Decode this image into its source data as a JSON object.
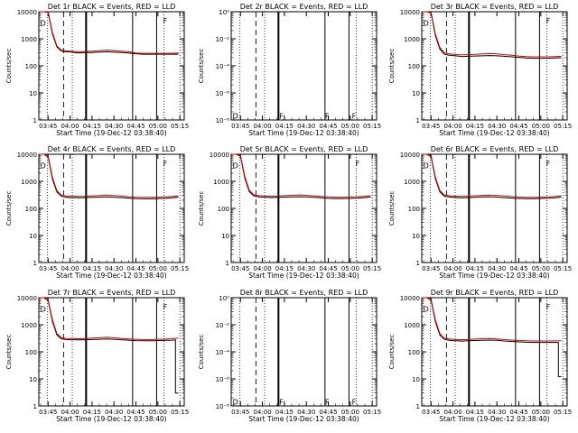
{
  "chart_data": [
    {
      "type": "line",
      "title": "Det 1r BLACK = Events, RED = LLD",
      "xlabel": "Start Time (19-Dec-12 03:38:40)",
      "ylabel": "Counts/sec",
      "x_ticks": [
        "03:45",
        "04:00",
        "04:15",
        "04:30",
        "04:45",
        "05:00",
        "05:15"
      ],
      "y_ticks": [
        "1",
        "10",
        "100",
        "1000",
        "10000"
      ],
      "y_scale": "log",
      "ylim": [
        1,
        10000
      ],
      "markers": [
        "D",
        "F",
        "F",
        "F"
      ],
      "series": [
        {
          "color": "#000000",
          "x": [
            "03:39",
            "03:42",
            "03:45",
            "03:48",
            "03:51",
            "03:54",
            "03:57",
            "04:00",
            "04:03",
            "04:06",
            "04:10",
            "04:15",
            "04:20",
            "04:25",
            "04:30",
            "04:35",
            "04:40",
            "04:45",
            "04:50",
            "04:55",
            "05:00",
            "05:05",
            "05:10",
            "05:14"
          ],
          "values": [
            10000,
            10000,
            9500,
            1500,
            500,
            350,
            330,
            330,
            310,
            300,
            310,
            310,
            320,
            330,
            320,
            310,
            300,
            280,
            270,
            270,
            270,
            270,
            270,
            270
          ]
        },
        {
          "color": "#d40000",
          "x": [
            "03:39",
            "03:42",
            "03:45",
            "03:48",
            "03:51",
            "03:54",
            "03:57",
            "04:00",
            "04:03",
            "04:06",
            "04:10",
            "04:15",
            "04:20",
            "04:25",
            "04:30",
            "04:35",
            "04:40",
            "04:45",
            "04:50",
            "04:55",
            "05:00",
            "05:05",
            "05:10",
            "05:14"
          ],
          "values": [
            10000,
            10000,
            9800,
            1700,
            550,
            380,
            360,
            350,
            340,
            330,
            340,
            350,
            360,
            380,
            370,
            350,
            330,
            300,
            290,
            290,
            290,
            290,
            290,
            300
          ]
        }
      ]
    },
    {
      "type": "line",
      "title": "Det 2r BLACK = Events, RED = LLD",
      "xlabel": "Start Time (19-Dec-12 03:38:40)",
      "ylabel": "Counts/sec",
      "x_ticks": [
        "03:45",
        "04:00",
        "04:15",
        "04:30",
        "04:45",
        "05:00",
        "05:15"
      ],
      "y_ticks": [
        "10⁻⁸",
        "10⁻⁶",
        "10⁻⁴",
        "10⁻²",
        "10⁰"
      ],
      "y_scale": "log",
      "ylim": [
        1e-09,
        1e-08
      ],
      "markers": [
        "D",
        "F",
        "F",
        "F"
      ],
      "series": []
    },
    {
      "type": "line",
      "title": "Det 3r BLACK = Events, RED = LLD",
      "xlabel": "Start Time (19-Dec-12 03:38:40)",
      "ylabel": "Counts/sec",
      "x_ticks": [
        "03:45",
        "04:00",
        "04:15",
        "04:30",
        "04:45",
        "05:00",
        "05:15"
      ],
      "y_ticks": [
        "1",
        "10",
        "100",
        "1000",
        "10000"
      ],
      "y_scale": "log",
      "ylim": [
        1,
        10000
      ],
      "markers": [
        "D",
        "F",
        "F",
        "F"
      ],
      "series": [
        {
          "color": "#000000",
          "x": [
            "03:39",
            "03:42",
            "03:45",
            "03:48",
            "03:51",
            "03:54",
            "03:57",
            "04:00",
            "04:03",
            "04:06",
            "04:10",
            "04:15",
            "04:20",
            "04:25",
            "04:30",
            "04:35",
            "04:40",
            "04:45",
            "04:50",
            "04:55",
            "05:00",
            "05:05",
            "05:10",
            "05:14"
          ],
          "values": [
            10000,
            10000,
            9000,
            1300,
            420,
            270,
            250,
            240,
            230,
            220,
            225,
            230,
            235,
            240,
            235,
            225,
            215,
            205,
            195,
            190,
            190,
            190,
            195,
            200
          ]
        },
        {
          "color": "#d40000",
          "x": [
            "03:39",
            "03:42",
            "03:45",
            "03:48",
            "03:51",
            "03:54",
            "03:57",
            "04:00",
            "04:03",
            "04:06",
            "04:10",
            "04:15",
            "04:20",
            "04:25",
            "04:30",
            "04:35",
            "04:40",
            "04:45",
            "04:50",
            "04:55",
            "05:00",
            "05:05",
            "05:10",
            "05:14"
          ],
          "values": [
            10000,
            10000,
            9500,
            1500,
            480,
            300,
            280,
            270,
            260,
            255,
            260,
            265,
            275,
            285,
            275,
            260,
            245,
            230,
            220,
            215,
            215,
            215,
            220,
            225
          ]
        }
      ]
    },
    {
      "type": "line",
      "title": "Det 4r BLACK = Events, RED = LLD",
      "xlabel": "Start Time (19-Dec-12 03:38:40)",
      "ylabel": "Counts/sec",
      "x_ticks": [
        "03:45",
        "04:00",
        "04:15",
        "04:30",
        "04:45",
        "05:00",
        "05:15"
      ],
      "y_ticks": [
        "1",
        "10",
        "100",
        "1000",
        "10000"
      ],
      "y_scale": "log",
      "ylim": [
        1,
        10000
      ],
      "markers": [
        "D",
        "F",
        "F",
        "F"
      ],
      "series": [
        {
          "color": "#000000",
          "x": [
            "03:39",
            "03:42",
            "03:45",
            "03:48",
            "03:51",
            "03:54",
            "03:57",
            "04:00",
            "04:03",
            "04:06",
            "04:10",
            "04:15",
            "04:20",
            "04:25",
            "04:30",
            "04:35",
            "04:40",
            "04:45",
            "04:50",
            "04:55",
            "05:00",
            "05:05",
            "05:10",
            "05:14"
          ],
          "values": [
            10000,
            10000,
            8000,
            1200,
            400,
            280,
            260,
            250,
            250,
            245,
            250,
            255,
            260,
            265,
            260,
            250,
            240,
            230,
            225,
            225,
            230,
            235,
            245,
            260
          ]
        },
        {
          "color": "#d40000",
          "x": [
            "03:39",
            "03:42",
            "03:45",
            "03:48",
            "03:51",
            "03:54",
            "03:57",
            "04:00",
            "04:03",
            "04:06",
            "04:10",
            "04:15",
            "04:20",
            "04:25",
            "04:30",
            "04:35",
            "04:40",
            "04:45",
            "04:50",
            "04:55",
            "05:00",
            "05:05",
            "05:10",
            "05:14"
          ],
          "values": [
            10000,
            10000,
            8500,
            1400,
            450,
            310,
            290,
            280,
            280,
            275,
            280,
            290,
            300,
            310,
            300,
            285,
            270,
            260,
            255,
            255,
            260,
            265,
            275,
            290
          ]
        }
      ]
    },
    {
      "type": "line",
      "title": "Det 5r BLACK = Events, RED = LLD",
      "xlabel": "Start Time (19-Dec-12 03:38:40)",
      "ylabel": "Counts/sec",
      "x_ticks": [
        "03:45",
        "04:00",
        "04:15",
        "04:30",
        "04:45",
        "05:00",
        "05:15"
      ],
      "y_ticks": [
        "1",
        "10",
        "100",
        "1000",
        "10000"
      ],
      "y_scale": "log",
      "ylim": [
        1,
        10000
      ],
      "markers": [
        "D",
        "F",
        "F",
        "F"
      ],
      "series": [
        {
          "color": "#000000",
          "x": [
            "03:39",
            "03:42",
            "03:45",
            "03:48",
            "03:51",
            "03:54",
            "03:57",
            "04:00",
            "04:03",
            "04:06",
            "04:10",
            "04:15",
            "04:20",
            "04:25",
            "04:30",
            "04:35",
            "04:40",
            "04:45",
            "04:50",
            "04:55",
            "05:00",
            "05:05",
            "05:10",
            "05:14"
          ],
          "values": [
            10000,
            10000,
            8500,
            1300,
            420,
            290,
            270,
            260,
            255,
            250,
            255,
            260,
            265,
            270,
            265,
            255,
            245,
            235,
            230,
            230,
            235,
            240,
            250,
            265
          ]
        },
        {
          "color": "#d40000",
          "x": [
            "03:39",
            "03:42",
            "03:45",
            "03:48",
            "03:51",
            "03:54",
            "03:57",
            "04:00",
            "04:03",
            "04:06",
            "04:10",
            "04:15",
            "04:20",
            "04:25",
            "04:30",
            "04:35",
            "04:40",
            "04:45",
            "04:50",
            "04:55",
            "05:00",
            "05:05",
            "05:10",
            "05:14"
          ],
          "values": [
            10000,
            10000,
            9000,
            1500,
            470,
            320,
            300,
            290,
            285,
            280,
            285,
            295,
            305,
            315,
            305,
            290,
            275,
            265,
            260,
            260,
            265,
            270,
            280,
            295
          ]
        }
      ]
    },
    {
      "type": "line",
      "title": "Det 6r BLACK = Events, RED = LLD",
      "xlabel": "Start Time (19-Dec-12 03:38:40)",
      "ylabel": "Counts/sec",
      "x_ticks": [
        "03:45",
        "04:00",
        "04:15",
        "04:30",
        "04:45",
        "05:00",
        "05:15"
      ],
      "y_ticks": [
        "1",
        "10",
        "100",
        "1000",
        "10000"
      ],
      "y_scale": "log",
      "ylim": [
        1,
        10000
      ],
      "markers": [
        "D",
        "F",
        "F",
        "F"
      ],
      "series": [
        {
          "color": "#000000",
          "x": [
            "03:39",
            "03:42",
            "03:45",
            "03:48",
            "03:51",
            "03:54",
            "03:57",
            "04:00",
            "04:03",
            "04:06",
            "04:10",
            "04:15",
            "04:20",
            "04:25",
            "04:30",
            "04:35",
            "04:40",
            "04:45",
            "04:50",
            "04:55",
            "05:00",
            "05:05",
            "05:10",
            "05:14"
          ],
          "values": [
            10000,
            10000,
            8200,
            1250,
            410,
            285,
            265,
            255,
            250,
            245,
            250,
            258,
            265,
            270,
            262,
            250,
            240,
            232,
            228,
            228,
            232,
            238,
            248,
            262
          ]
        },
        {
          "color": "#d40000",
          "x": [
            "03:39",
            "03:42",
            "03:45",
            "03:48",
            "03:51",
            "03:54",
            "03:57",
            "04:00",
            "04:03",
            "04:06",
            "04:10",
            "04:15",
            "04:20",
            "04:25",
            "04:30",
            "04:35",
            "04:40",
            "04:45",
            "04:50",
            "04:55",
            "05:00",
            "05:05",
            "05:10",
            "05:14"
          ],
          "values": [
            10000,
            10000,
            8700,
            1450,
            460,
            315,
            295,
            285,
            280,
            275,
            282,
            292,
            302,
            312,
            302,
            288,
            272,
            262,
            257,
            257,
            262,
            268,
            278,
            292
          ]
        }
      ]
    },
    {
      "type": "line",
      "title": "Det 7r BLACK = Events, RED = LLD",
      "xlabel": "Start Time (19-Dec-12 03:38:40)",
      "ylabel": "Counts/sec",
      "x_ticks": [
        "03:45",
        "04:00",
        "04:15",
        "04:30",
        "04:45",
        "05:00",
        "05:15"
      ],
      "y_ticks": [
        "1",
        "10",
        "100",
        "1000",
        "10000"
      ],
      "y_scale": "log",
      "ylim": [
        1,
        10000
      ],
      "markers": [
        "D",
        "F",
        "F",
        "F"
      ],
      "series": [
        {
          "color": "#000000",
          "x": [
            "03:39",
            "03:42",
            "03:45",
            "03:48",
            "03:51",
            "03:54",
            "03:57",
            "04:00",
            "04:03",
            "04:06",
            "04:10",
            "04:15",
            "04:20",
            "04:25",
            "04:30",
            "04:35",
            "04:40",
            "04:45",
            "04:50",
            "04:55",
            "05:00",
            "05:05",
            "05:10",
            "05:12",
            "05:12",
            "05:14"
          ],
          "values": [
            10000,
            10000,
            8000,
            1300,
            420,
            300,
            285,
            280,
            280,
            275,
            280,
            285,
            290,
            300,
            290,
            280,
            270,
            260,
            255,
            255,
            260,
            265,
            270,
            275,
            3,
            3
          ]
        },
        {
          "color": "#d40000",
          "x": [
            "03:39",
            "03:42",
            "03:45",
            "03:48",
            "03:51",
            "03:54",
            "03:57",
            "04:00",
            "04:03",
            "04:06",
            "04:10",
            "04:15",
            "04:20",
            "04:25",
            "04:30",
            "04:35",
            "04:40",
            "04:45",
            "04:50",
            "04:55",
            "05:00",
            "05:05",
            "05:10",
            "05:14"
          ],
          "values": [
            10000,
            10000,
            8500,
            1500,
            470,
            330,
            315,
            310,
            310,
            305,
            310,
            320,
            330,
            345,
            330,
            315,
            300,
            290,
            285,
            285,
            290,
            295,
            305,
            320
          ]
        }
      ]
    },
    {
      "type": "line",
      "title": "Det 8r BLACK = Events, RED = LLD",
      "xlabel": "Start Time (19-Dec-12 03:38:40)",
      "ylabel": "Counts/sec",
      "x_ticks": [
        "03:45",
        "04:00",
        "04:15",
        "04:30",
        "04:45",
        "05:00",
        "05:15"
      ],
      "y_ticks": [
        "10⁻⁸",
        "10⁻⁶",
        "10⁻⁴",
        "10⁻²",
        "10⁰"
      ],
      "y_scale": "log",
      "ylim": [
        1e-09,
        1e-08
      ],
      "markers": [
        "D",
        "F",
        "F",
        "F"
      ],
      "series": []
    },
    {
      "type": "line",
      "title": "Det 9r BLACK = Events, RED = LLD",
      "xlabel": "Start Time (19-Dec-12 03:38:40)",
      "ylabel": "Counts/sec",
      "x_ticks": [
        "03:45",
        "04:00",
        "04:15",
        "04:30",
        "04:45",
        "05:00",
        "05:15"
      ],
      "y_ticks": [
        "1",
        "10",
        "100",
        "1000",
        "10000"
      ],
      "y_scale": "log",
      "ylim": [
        1,
        10000
      ],
      "markers": [
        "D",
        "F",
        "F",
        "F"
      ],
      "series": [
        {
          "color": "#000000",
          "x": [
            "03:39",
            "03:42",
            "03:45",
            "03:48",
            "03:51",
            "03:54",
            "03:57",
            "04:00",
            "04:03",
            "04:06",
            "04:10",
            "04:15",
            "04:20",
            "04:25",
            "04:30",
            "04:35",
            "04:40",
            "04:45",
            "04:50",
            "04:55",
            "05:00",
            "05:05",
            "05:10",
            "05:12",
            "05:12",
            "05:14"
          ],
          "values": [
            10000,
            10000,
            8200,
            1300,
            420,
            290,
            270,
            260,
            255,
            250,
            255,
            262,
            268,
            272,
            265,
            252,
            242,
            232,
            225,
            222,
            222,
            222,
            222,
            222,
            12,
            12
          ]
        },
        {
          "color": "#d40000",
          "x": [
            "03:39",
            "03:42",
            "03:45",
            "03:48",
            "03:51",
            "03:54",
            "03:57",
            "04:00",
            "04:03",
            "04:06",
            "04:10",
            "04:15",
            "04:20",
            "04:25",
            "04:30",
            "04:35",
            "04:40",
            "04:45",
            "04:50",
            "04:55",
            "05:00",
            "05:05",
            "05:10",
            "05:14"
          ],
          "values": [
            10000,
            10000,
            8700,
            1500,
            470,
            320,
            300,
            290,
            285,
            280,
            285,
            295,
            305,
            312,
            300,
            285,
            272,
            262,
            255,
            252,
            252,
            252,
            254,
            258
          ]
        }
      ]
    }
  ]
}
